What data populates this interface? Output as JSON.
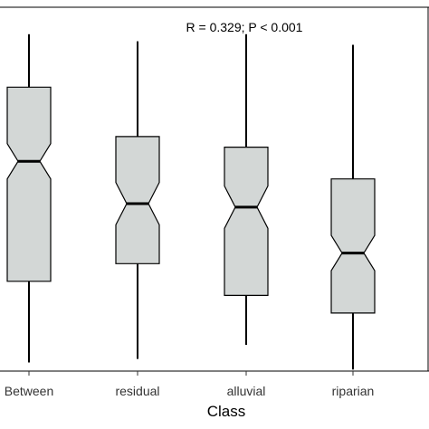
{
  "chart_data": {
    "type": "boxplot",
    "annotation": "R = 0.329; P < 0.001",
    "xlabel": "Class",
    "ylabel": "",
    "categories": [
      "Between",
      "residual",
      "alluvial",
      "riparian"
    ],
    "boxes": [
      {
        "category": "Between",
        "min": 5,
        "q1": 28,
        "median": 62,
        "q3": 83,
        "max": 98,
        "notch_low": 57,
        "notch_high": 67
      },
      {
        "category": "residual",
        "min": 6,
        "q1": 33,
        "median": 50,
        "q3": 69,
        "max": 96,
        "notch_low": 44,
        "notch_high": 56
      },
      {
        "category": "alluvial",
        "min": 10,
        "q1": 24,
        "median": 49,
        "q3": 66,
        "max": 98,
        "notch_low": 43,
        "notch_high": 55
      },
      {
        "category": "riparian",
        "min": 3,
        "q1": 19,
        "median": 36,
        "q3": 57,
        "max": 95,
        "notch_low": 31,
        "notch_high": 41
      }
    ],
    "ylim": [
      0,
      100
    ],
    "grid": false,
    "box_fill": "#d3d7d6",
    "line_color": "#000000"
  }
}
